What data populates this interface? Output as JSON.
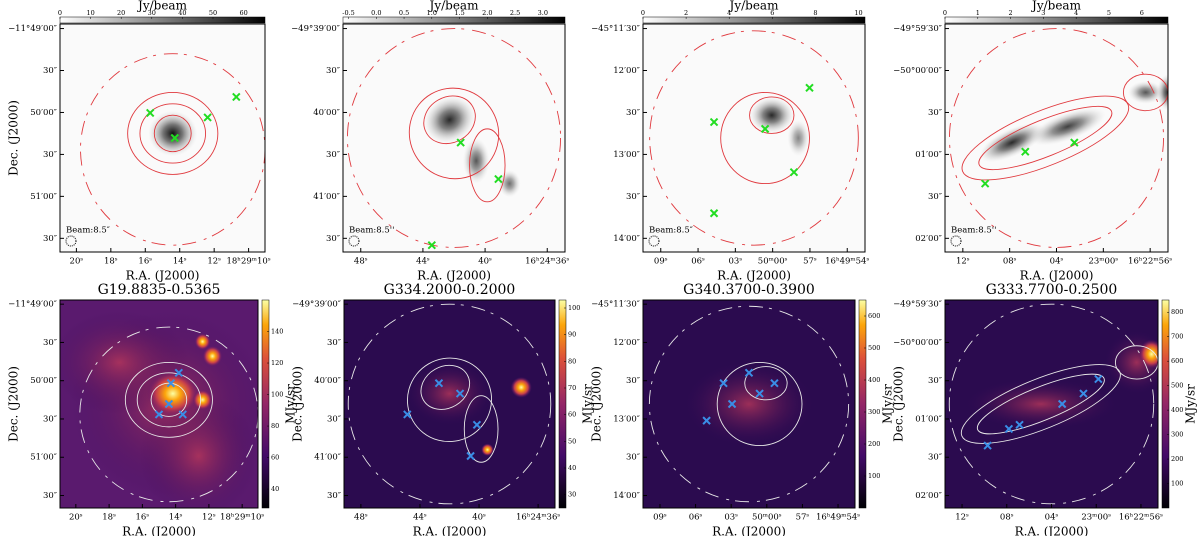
{
  "top_row": [
    {
      "colorbar_label": "Jy/beam",
      "colorbar_lim": [
        0,
        67
      ],
      "colorbar_ticks": [
        0,
        10,
        20,
        30,
        40,
        50,
        60
      ],
      "xticks": [
        "20ˢ",
        "18ˢ",
        "16ˢ",
        "14ˢ",
        "12ˢ",
        "18ʰ29ᵐ10ˢ"
      ],
      "yticks": [
        "−11°49′00″",
        "30″",
        "50′00″",
        "30″",
        "51′00″",
        "30″"
      ],
      "xlabel": "R.A. (J2000)",
      "ylabel": "Dec. (J2000)",
      "beam_label": "Beam:8.5″"
    },
    {
      "colorbar_label": "Jy/beam",
      "colorbar_lim": [
        -0.6,
        3.4
      ],
      "colorbar_ticks": [
        -0.5,
        {
          "value": 0,
          "label": "0.0"
        },
        0.5,
        {
          "value": 1,
          "label": "1.0"
        },
        1.5,
        {
          "value": 2,
          "label": "2.0"
        },
        2.5,
        {
          "value": 3,
          "label": "3.0"
        }
      ],
      "xticks": [
        "48ˢ",
        "44ˢ",
        "40ˢ",
        "16ʰ24ᵐ36ˢ"
      ],
      "yticks": [
        "−49°39′00″",
        "30″",
        "40′00″",
        "30″",
        "41′00″",
        "30″"
      ],
      "xlabel": "R.A. (J2000)",
      "beam_label": "Beam:8.5''"
    },
    {
      "colorbar_label": "Jy/beam",
      "colorbar_lim": [
        0,
        10.3
      ],
      "colorbar_ticks": [
        0,
        2,
        4,
        6,
        8,
        10
      ],
      "xticks": [
        "09ˢ",
        "06ˢ",
        "03ˢ",
        "50ᵐ00ˢ",
        "57ˢ",
        "16ʰ49ᵐ54ˢ"
      ],
      "yticks": [
        "−45°11′30″",
        "12′00″",
        "30″",
        "13′00″",
        "30″",
        "14′00″"
      ],
      "xlabel": "R.A. (J2000)",
      "beam_label": "Beam:8.5″"
    },
    {
      "colorbar_label": "Jy/beam",
      "colorbar_lim": [
        0,
        6.8
      ],
      "colorbar_ticks": [
        0,
        1,
        2,
        3,
        4,
        5,
        6
      ],
      "xticks": [
        "12ˢ",
        "08ˢ",
        "04ˢ",
        "23ᵐ00ˢ",
        "16ʰ22ᵐ56ˢ"
      ],
      "yticks": [
        "−49°59′30″",
        "−50°00′00″",
        "30″",
        "01′00″",
        "30″",
        "02′00″"
      ],
      "xlabel": "R.A. (J2000)",
      "beam_label": "Beam:8.5''"
    }
  ],
  "bottom_row": [
    {
      "title": "G19.8835-0.5365",
      "colorbar_label": "MJy/sr",
      "colorbar_lim": [
        28,
        160
      ],
      "colorbar_ticks": [
        40,
        60,
        80,
        100,
        120,
        140
      ],
      "xticks": [
        "20ˢ",
        "18ˢ",
        "16ˢ",
        "14ˢ",
        "12ˢ",
        "18ʰ29ᵐ10ˢ"
      ],
      "yticks": [
        "−11°49′00″",
        "30″",
        "50′00″",
        "30″",
        "51′00″",
        "30″"
      ],
      "xlabel": "R.A. (J2000)",
      "ylabel": "Dec. (J2000)"
    },
    {
      "title": "G334.2000-0.2000",
      "colorbar_label": "MJy/sr",
      "colorbar_lim": [
        25,
        103
      ],
      "colorbar_ticks": [
        30,
        40,
        50,
        60,
        70,
        80,
        90,
        100
      ],
      "xticks": [
        "48ˢ",
        "44ˢ",
        "40ˢ",
        "16ʰ24ᵐ36ˢ"
      ],
      "yticks": [
        "−49°39′00″",
        "30″",
        "40′00″",
        "30″",
        "41′00″",
        "30″"
      ],
      "xlabel": "R.A. (J2000)",
      "ylabel": "Dec. (J2000)"
    },
    {
      "title": "G340.3700-0.3900",
      "colorbar_label": "MJy/sr",
      "colorbar_lim": [
        0,
        650
      ],
      "colorbar_ticks": [
        100,
        200,
        300,
        400,
        500,
        600
      ],
      "xticks": [
        "09ˢ",
        "06ˢ",
        "03ˢ",
        "50ᵐ00ˢ",
        "57ˢ",
        "16ʰ49ᵐ54ˢ"
      ],
      "yticks": [
        "−45°11′30″",
        "12′00″",
        "30″",
        "13′00″",
        "30″",
        "14′00″"
      ],
      "xlabel": "R.A. (J2000)",
      "ylabel": "Dec. (J2000)"
    },
    {
      "title": "G333.7700-0.2500",
      "colorbar_label": "MJy/sr",
      "colorbar_lim": [
        0,
        850
      ],
      "colorbar_ticks": [
        100,
        200,
        300,
        400,
        500,
        600,
        700,
        800
      ],
      "xticks": [
        "12ˢ",
        "08ˢ",
        "04ˢ",
        "23ᵐ00ˢ",
        "16ʰ22ᵐ56ˢ"
      ],
      "yticks": [
        "−49°59′30″",
        "−50°00′00″",
        "30″",
        "01′00″",
        "30″",
        "02′00″"
      ],
      "xlabel": "R.A. (J2000)",
      "ylabel": "Dec. (J2000)"
    }
  ]
}
